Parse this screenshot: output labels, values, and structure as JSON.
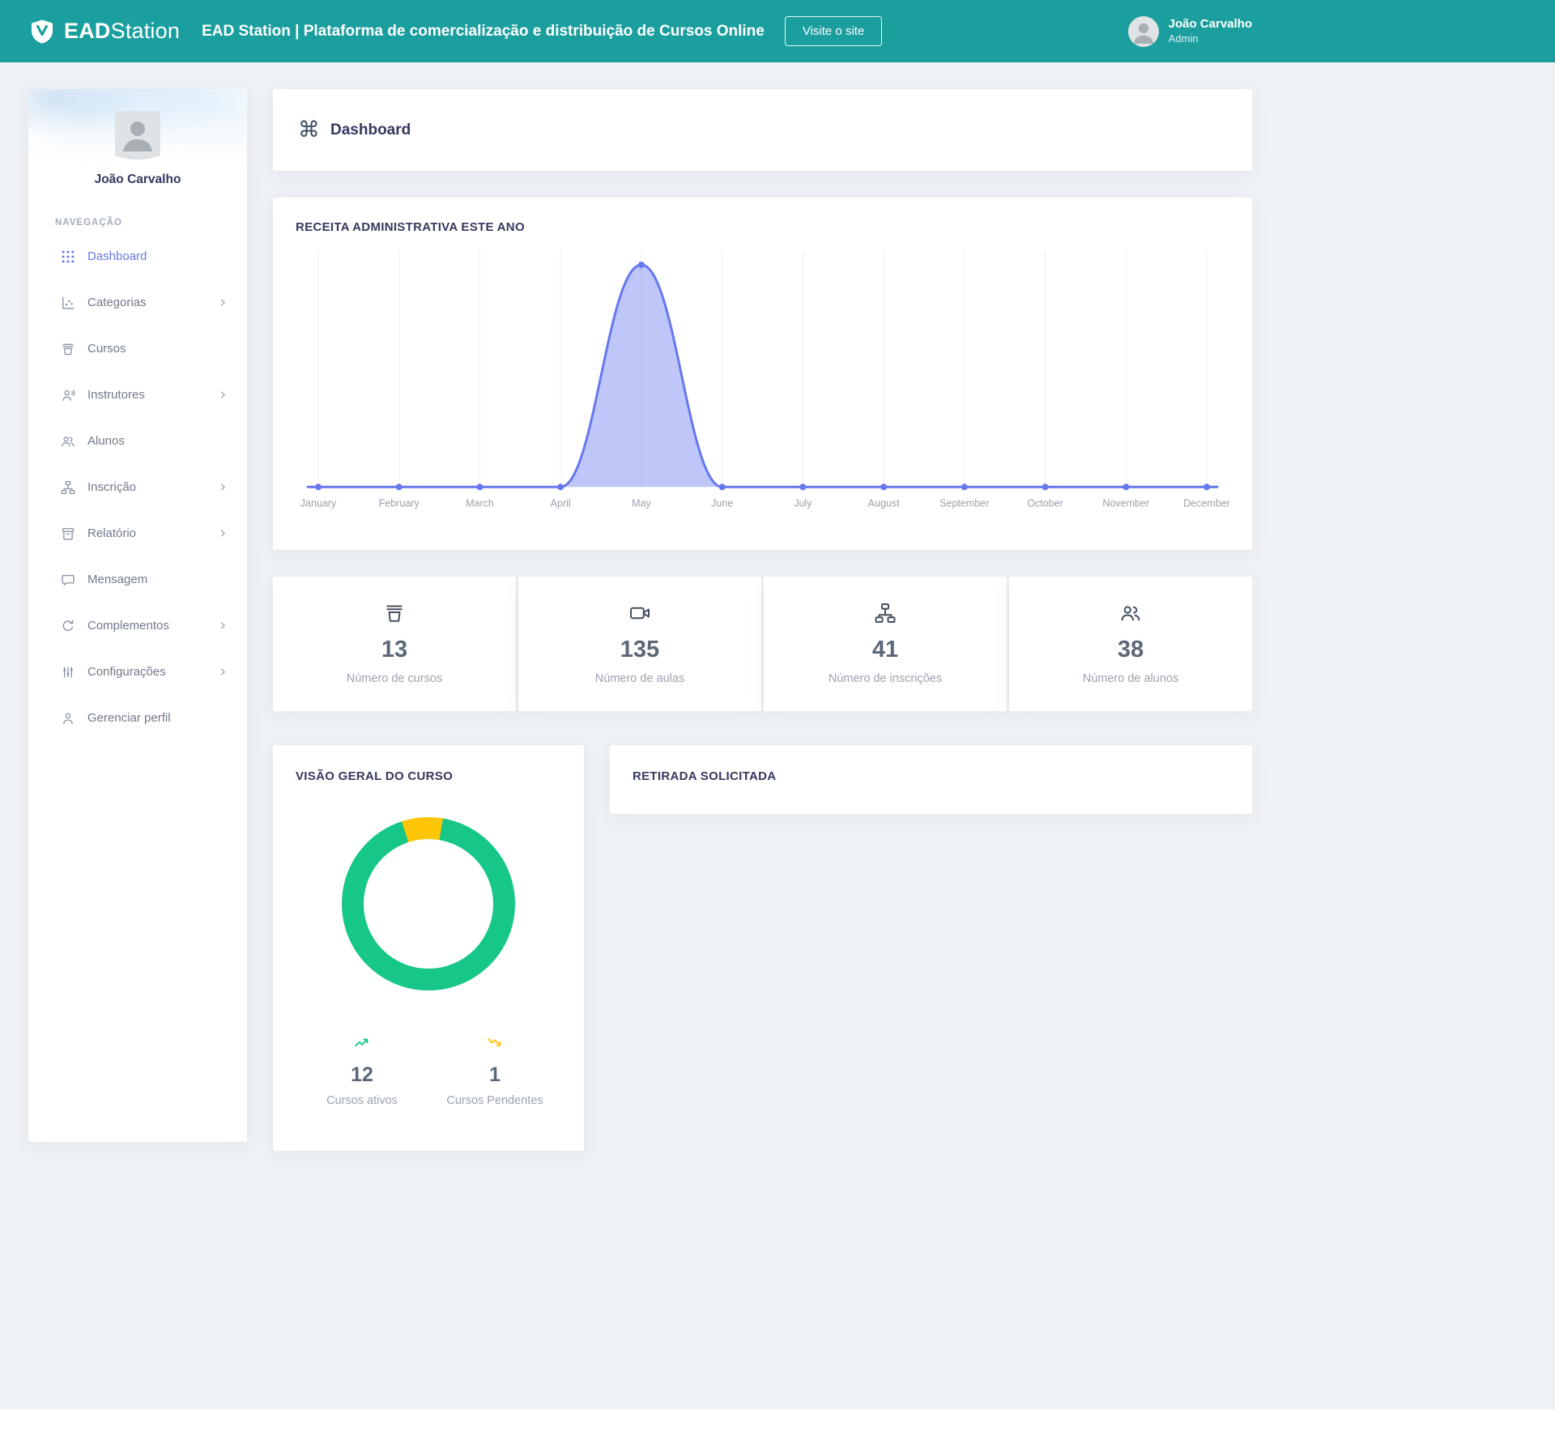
{
  "header": {
    "brand_bold": "EAD",
    "brand_light": "Station",
    "title": "EAD Station | Plataforma de comercialização e distribuição de Cursos Online",
    "visit_site_button": "Visite o site",
    "user_name": "João Carvalho",
    "user_role": "Admin"
  },
  "sidebar": {
    "user_name": "João Carvalho",
    "section_label": "NAVEGAÇÃO",
    "items": [
      {
        "label": "Dashboard",
        "icon": "grid-icon",
        "active": true,
        "has_submenu": false
      },
      {
        "label": "Categorias",
        "icon": "category-chart-icon",
        "active": false,
        "has_submenu": true
      },
      {
        "label": "Cursos",
        "icon": "courses-icon",
        "active": false,
        "has_submenu": false
      },
      {
        "label": "Instrutores",
        "icon": "instructor-icon",
        "active": false,
        "has_submenu": true
      },
      {
        "label": "Alunos",
        "icon": "students-icon",
        "active": false,
        "has_submenu": false
      },
      {
        "label": "Inscrição",
        "icon": "sitemap-icon",
        "active": false,
        "has_submenu": true
      },
      {
        "label": "Relatório",
        "icon": "report-icon",
        "active": false,
        "has_submenu": true
      },
      {
        "label": "Mensagem",
        "icon": "message-icon",
        "active": false,
        "has_submenu": false
      },
      {
        "label": "Complementos",
        "icon": "addons-icon",
        "active": false,
        "has_submenu": true
      },
      {
        "label": "Configurações",
        "icon": "settings-icon",
        "active": false,
        "has_submenu": true
      },
      {
        "label": "Gerenciar perfil",
        "icon": "profile-icon",
        "active": false,
        "has_submenu": false
      }
    ]
  },
  "page": {
    "title": "Dashboard",
    "icon_glyph": "⌘"
  },
  "stats": [
    {
      "value": "13",
      "label": "Número de cursos",
      "icon": "courses-icon"
    },
    {
      "value": "135",
      "label": "Número de aulas",
      "icon": "video-icon"
    },
    {
      "value": "41",
      "label": "Número de inscrições",
      "icon": "sitemap-icon"
    },
    {
      "value": "38",
      "label": "Número de alunos",
      "icon": "students-icon"
    }
  ],
  "course_overview": {
    "title": "VISÃO GERAL DO CURSO",
    "active_value": "12",
    "active_label": "Cursos ativos",
    "pending_value": "1",
    "pending_label": "Cursos Pendentes"
  },
  "withdraw": {
    "title": "RETIRADA SOLICITADA"
  },
  "colors": {
    "header_teal": "#1b9e9e",
    "primary": "#6777ef",
    "chart_fill": "rgba(103,119,239,0.42)",
    "green": "#17c787",
    "yellow": "#fdc506"
  },
  "chart_data": [
    {
      "type": "area",
      "title": "RECEITA ADMINISTRATIVA ESTE ANO",
      "x": [
        "January",
        "February",
        "March",
        "April",
        "May",
        "June",
        "July",
        "August",
        "September",
        "October",
        "November",
        "December"
      ],
      "values": [
        0,
        0,
        0,
        0,
        100,
        0,
        0,
        0,
        0,
        0,
        0,
        0
      ],
      "note": "y-axis not labeled; single smooth spike peaking at May, all other months at zero",
      "line_color": "#6777ef",
      "fill_color": "rgba(103,119,239,0.42)",
      "grid": "vertical-only",
      "legend": "none"
    },
    {
      "type": "pie",
      "style": "donut",
      "title": "VISÃO GERAL DO CURSO",
      "labels": [
        "Cursos ativos",
        "Cursos Pendentes"
      ],
      "values": [
        12,
        1
      ],
      "colors": [
        "#17c787",
        "#fdc506"
      ],
      "legend": "below, as stat columns"
    }
  ]
}
